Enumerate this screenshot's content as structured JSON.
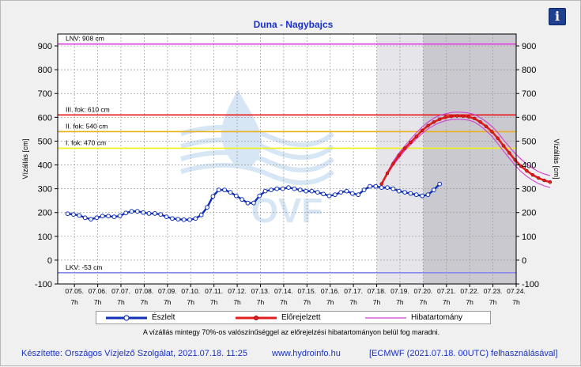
{
  "chart_data": {
    "type": "line",
    "title": "Duna - Nagybajcs",
    "ylabel": "Vízállás [cm]",
    "ylabel_right": "Vízállás [cm]",
    "ylim": [
      -100,
      950
    ],
    "y_ticks": [
      -100,
      0,
      100,
      200,
      300,
      400,
      500,
      600,
      700,
      800,
      900
    ],
    "x_ticks": [
      {
        "date": "07.05.",
        "hour": "7h"
      },
      {
        "date": "07.06.",
        "hour": "7h"
      },
      {
        "date": "07.07.",
        "hour": "7h"
      },
      {
        "date": "07.08.",
        "hour": "7h"
      },
      {
        "date": "07.09.",
        "hour": "7h"
      },
      {
        "date": "07.10.",
        "hour": "7h"
      },
      {
        "date": "07.11.",
        "hour": "7h"
      },
      {
        "date": "07.12.",
        "hour": "7h"
      },
      {
        "date": "07.13.",
        "hour": "7h"
      },
      {
        "date": "07.14.",
        "hour": "7h"
      },
      {
        "date": "07.15.",
        "hour": "7h"
      },
      {
        "date": "07.16.",
        "hour": "7h"
      },
      {
        "date": "07.17.",
        "hour": "7h"
      },
      {
        "date": "07.18.",
        "hour": "7h"
      },
      {
        "date": "07.19.",
        "hour": "7h"
      },
      {
        "date": "07.20.",
        "hour": "7h"
      },
      {
        "date": "07.21.",
        "hour": "7h"
      },
      {
        "date": "07.22.",
        "hour": "7h"
      },
      {
        "date": "07.23.",
        "hour": "7h"
      },
      {
        "date": "07.24.",
        "hour": "7h"
      }
    ],
    "grid": true,
    "legend_position": "bottom",
    "thresholds": [
      {
        "label": "LNV: 908 cm",
        "value": 908,
        "color": "#e040e0"
      },
      {
        "label": "III. fok: 610 cm",
        "value": 610,
        "color": "#e81818"
      },
      {
        "label": "II. fok: 540 cm",
        "value": 540,
        "color": "#e8b020"
      },
      {
        "label": "I. fok: 470 cm",
        "value": 470,
        "color": "#f0f020"
      },
      {
        "label": "LKV: -53 cm",
        "value": -53,
        "color": "#8888ee"
      }
    ],
    "series": [
      {
        "name": "Észlelt",
        "color": "#1030b8",
        "x_start": "07.05. 0h",
        "x_step_hours": 6,
        "values": [
          195,
          192,
          188,
          178,
          172,
          178,
          185,
          185,
          182,
          186,
          198,
          205,
          205,
          200,
          196,
          196,
          192,
          182,
          175,
          172,
          170,
          170,
          175,
          190,
          222,
          268,
          295,
          295,
          285,
          270,
          255,
          240,
          240,
          270,
          290,
          295,
          300,
          300,
          305,
          300,
          295,
          290,
          290,
          285,
          278,
          270,
          275,
          285,
          290,
          280,
          275,
          295,
          310,
          310,
          305,
          305,
          300,
          290,
          285,
          280,
          275,
          270,
          275,
          295,
          320
        ]
      },
      {
        "name": "Előrejelzett",
        "color": "#e02020",
        "x_start": "07.18. 12h",
        "x_step_hours": 6,
        "values": [
          320,
          365,
          405,
          440,
          470,
          495,
          520,
          545,
          565,
          580,
          592,
          600,
          604,
          606,
          605,
          602,
          595,
          580,
          562,
          540,
          512,
          480,
          450,
          420,
          395,
          375,
          358,
          345,
          335,
          328
        ]
      }
    ],
    "error_band": {
      "name": "Hibatartomány",
      "color": "#d040d0",
      "x_start": "07.18. 12h",
      "x_step_hours": 6,
      "upper": [
        320,
        370,
        415,
        450,
        480,
        508,
        535,
        560,
        580,
        596,
        608,
        615,
        620,
        622,
        621,
        618,
        612,
        598,
        582,
        562,
        536,
        505,
        476,
        448,
        424,
        404,
        386,
        372,
        362,
        355
      ],
      "lower": [
        320,
        360,
        398,
        430,
        460,
        485,
        510,
        532,
        552,
        566,
        578,
        586,
        590,
        592,
        591,
        588,
        580,
        564,
        544,
        520,
        490,
        458,
        428,
        398,
        372,
        352,
        335,
        322,
        312,
        305
      ]
    },
    "forecast_zones": [
      {
        "from": "07.18. 7h",
        "to": "07.20. 7h",
        "color": "#e6e6ea"
      },
      {
        "from": "07.20. 7h",
        "to": "07.24. 7h",
        "color": "#c9c9cf"
      }
    ]
  },
  "legend": {
    "observed": "Észlelt",
    "forecast": "Előrejelzett",
    "error_band": "Hibatartomány"
  },
  "note": "A vízállás mintegy 70%-os valószínűséggel az előrejelzési hibatartományon belül fog maradni.",
  "footer": {
    "creator": "Készítette: Országos Vízjelző Szolgálat, 2021.07.18. 11:25",
    "website": "www.hydroinfo.hu",
    "credit": "[ECMWF (2021.07.18. 00UTC) felhasználásával]"
  },
  "watermark": "OVF",
  "info_button": {
    "icon": "info-icon",
    "label": "i"
  }
}
